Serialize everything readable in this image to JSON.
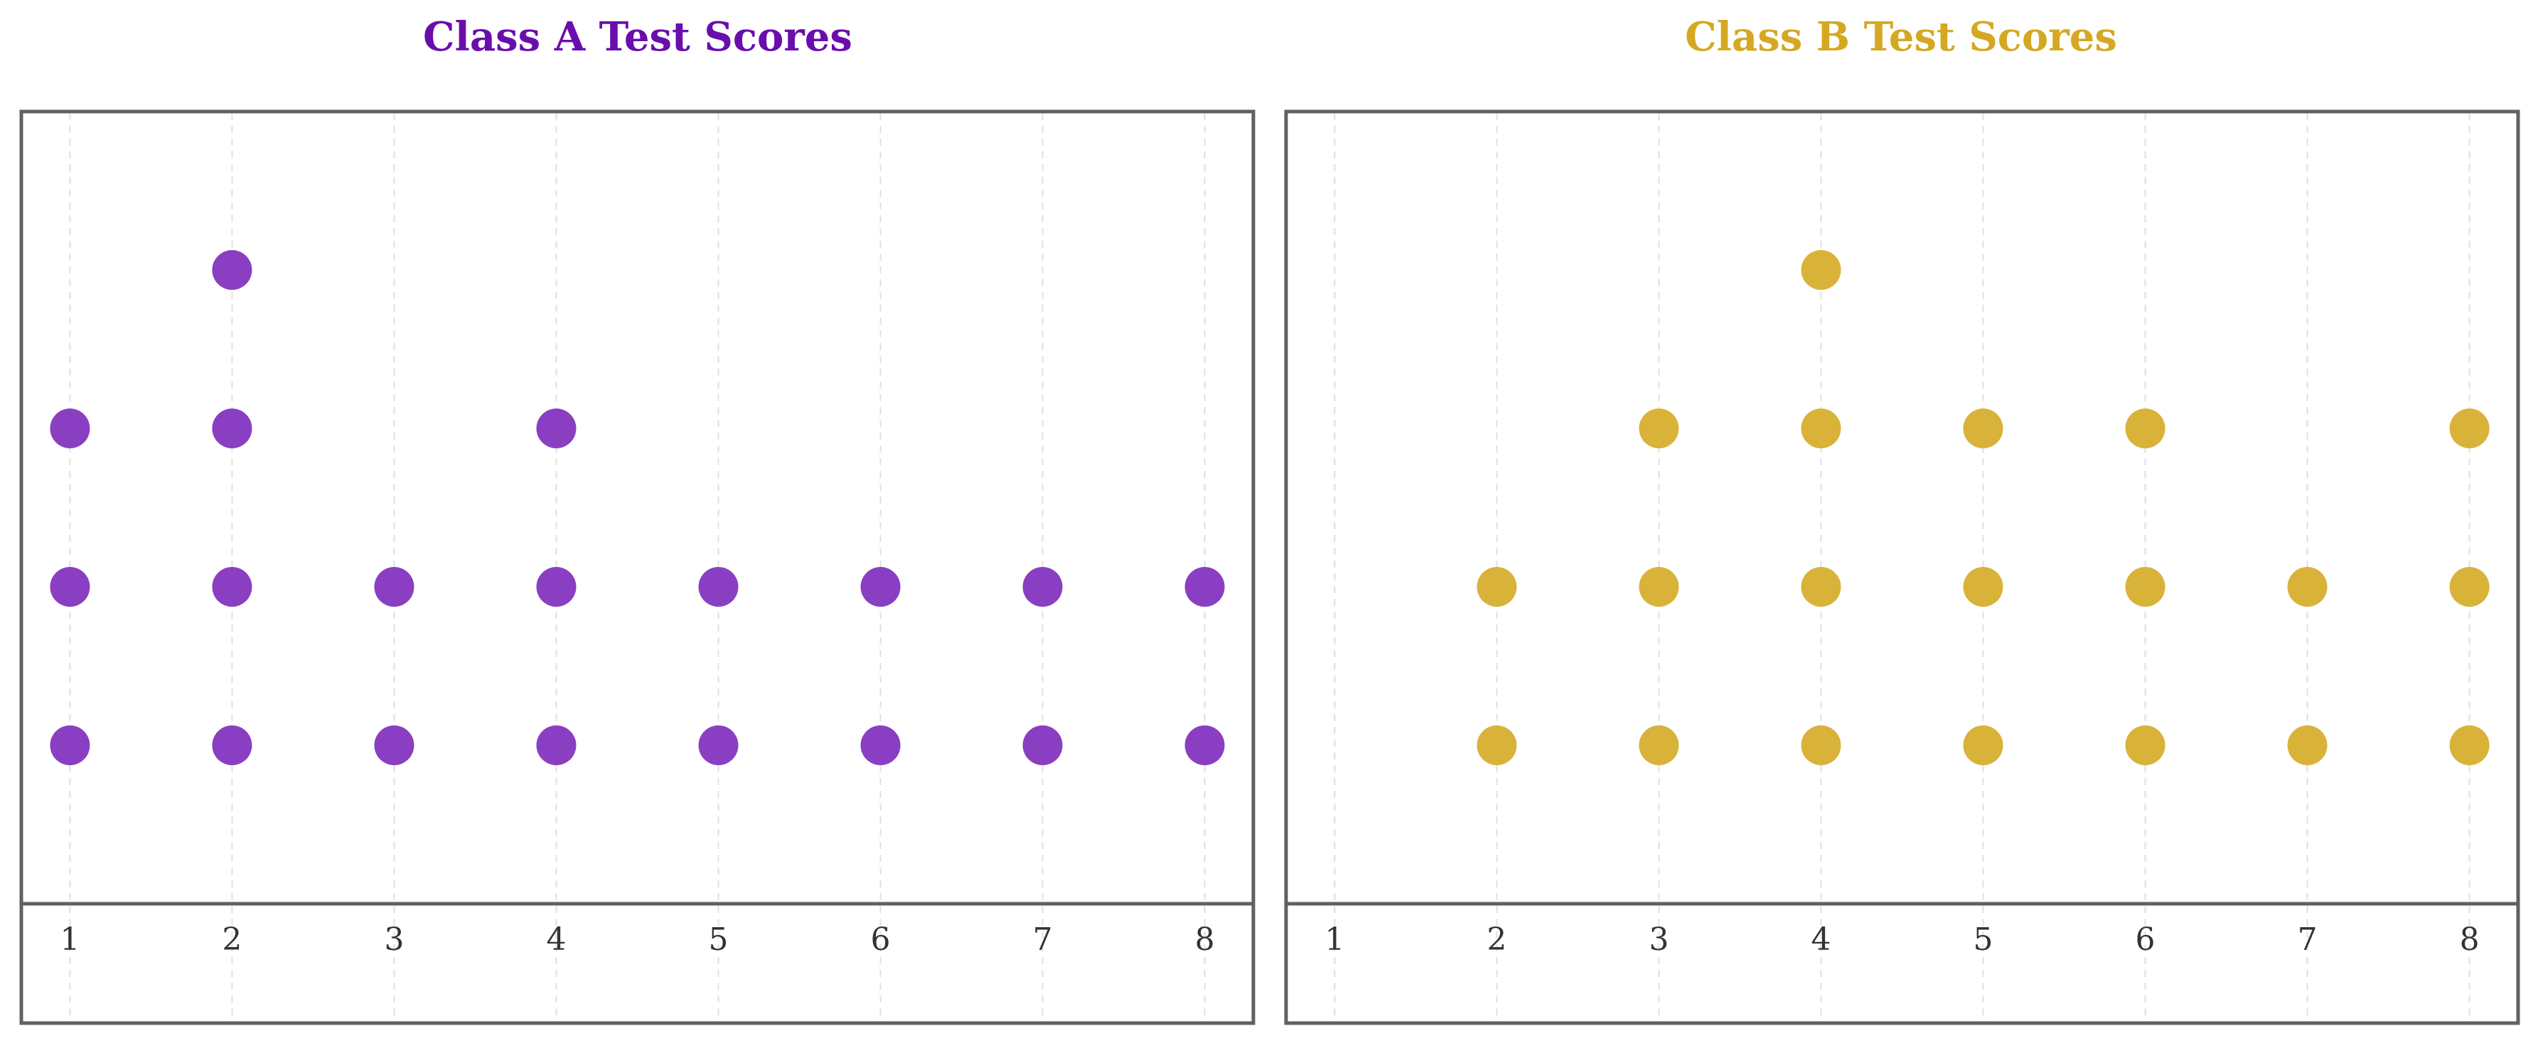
{
  "chart_data": [
    {
      "type": "scatter",
      "title": "Class A Test Scores",
      "title_color": "#6a0dad",
      "marker_color": "#8a3fc2",
      "x_ticks": [
        "1",
        "2",
        "3",
        "4",
        "5",
        "6",
        "7",
        "8"
      ],
      "xlim": [
        0.7,
        8.3
      ],
      "ylim": [
        0,
        5
      ],
      "grid": "x-dashed",
      "legend": "none",
      "points": [
        {
          "x": 1,
          "y": 1
        },
        {
          "x": 1,
          "y": 2
        },
        {
          "x": 1,
          "y": 3
        },
        {
          "x": 2,
          "y": 1
        },
        {
          "x": 2,
          "y": 2
        },
        {
          "x": 2,
          "y": 3
        },
        {
          "x": 2,
          "y": 4
        },
        {
          "x": 3,
          "y": 1
        },
        {
          "x": 3,
          "y": 2
        },
        {
          "x": 4,
          "y": 1
        },
        {
          "x": 4,
          "y": 2
        },
        {
          "x": 4,
          "y": 3
        },
        {
          "x": 5,
          "y": 1
        },
        {
          "x": 5,
          "y": 2
        },
        {
          "x": 6,
          "y": 1
        },
        {
          "x": 6,
          "y": 2
        },
        {
          "x": 7,
          "y": 1
        },
        {
          "x": 7,
          "y": 2
        },
        {
          "x": 8,
          "y": 1
        },
        {
          "x": 8,
          "y": 2
        }
      ]
    },
    {
      "type": "scatter",
      "title": "Class B Test Scores",
      "title_color": "#d4a821",
      "marker_color": "#d9b23a",
      "x_ticks": [
        "1",
        "2",
        "3",
        "4",
        "5",
        "6",
        "7",
        "8"
      ],
      "xlim": [
        0.7,
        8.3
      ],
      "ylim": [
        0,
        5
      ],
      "grid": "x-dashed",
      "legend": "none",
      "points": [
        {
          "x": 2,
          "y": 1
        },
        {
          "x": 2,
          "y": 2
        },
        {
          "x": 3,
          "y": 1
        },
        {
          "x": 3,
          "y": 2
        },
        {
          "x": 3,
          "y": 3
        },
        {
          "x": 4,
          "y": 1
        },
        {
          "x": 4,
          "y": 2
        },
        {
          "x": 4,
          "y": 3
        },
        {
          "x": 4,
          "y": 4
        },
        {
          "x": 5,
          "y": 1
        },
        {
          "x": 5,
          "y": 2
        },
        {
          "x": 5,
          "y": 3
        },
        {
          "x": 6,
          "y": 1
        },
        {
          "x": 6,
          "y": 2
        },
        {
          "x": 6,
          "y": 3
        },
        {
          "x": 7,
          "y": 1
        },
        {
          "x": 7,
          "y": 2
        },
        {
          "x": 8,
          "y": 1
        },
        {
          "x": 8,
          "y": 2
        },
        {
          "x": 8,
          "y": 3
        }
      ]
    }
  ]
}
